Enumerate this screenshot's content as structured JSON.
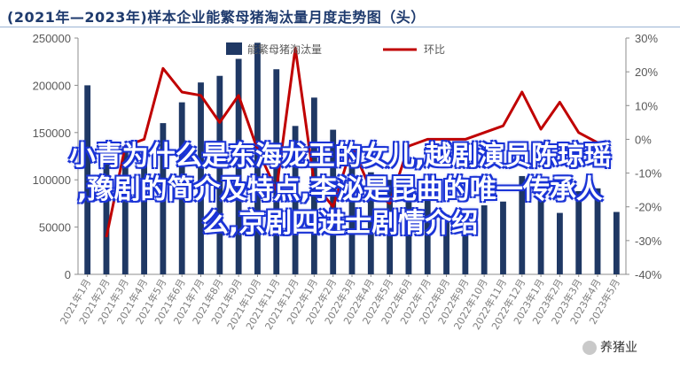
{
  "header": {
    "title": "(2021年—2023年)样本企业能繁母猪淘汰量月度走势图（头）"
  },
  "overlay": {
    "line1": "小青为什么是东海龙王的女儿,越剧演员陈琼瑶",
    "line2": ",豫剧的简介及特点,李泌是昆曲的唯一传承人",
    "line3": "么,京剧四进士剧情介绍"
  },
  "watermark": {
    "text": "养猪业"
  },
  "chart_data": {
    "type": "bar",
    "categories": [
      "2021年1月",
      "2021年2月",
      "2021年3月",
      "2021年4月",
      "2021年5月",
      "2021年6月",
      "2021年7月",
      "2021年8月",
      "2021年9月",
      "2021年10月",
      "2021年11月",
      "2021年12月",
      "2022年1月",
      "2022年2月",
      "2022年3月",
      "2022年4月",
      "2022年5月",
      "2022年6月",
      "2022年7月",
      "2022年8月",
      "2022年9月",
      "2022年10月",
      "2022年11月",
      "2022年12月",
      "2023年1月",
      "2023年2月",
      "2023年3月",
      "2023年4月",
      "2023年5月"
    ],
    "series": [
      {
        "name": "能繁母猪淘汰量",
        "type": "bar",
        "axis": "left",
        "color": "#1f3864",
        "values": [
          200000,
          140000,
          135000,
          135000,
          160000,
          182000,
          203000,
          210000,
          228000,
          245000,
          217000,
          157000,
          187000,
          153000,
          118000,
          108000,
          100000,
          88000,
          87000,
          63000,
          58000,
          73000,
          77000,
          104000,
          98000,
          65000,
          88000,
          91000,
          66000
        ]
      },
      {
        "name": "环比",
        "type": "line",
        "axis": "right",
        "color": "#c00000",
        "values": [
          null,
          -29,
          -2,
          0,
          21,
          14,
          13,
          5,
          13,
          -3,
          -15,
          27,
          -13,
          -20,
          -2,
          -15,
          -19,
          -2,
          0,
          0,
          0,
          2,
          4,
          14,
          3,
          11,
          2,
          -1,
          null
        ]
      }
    ],
    "left_axis": {
      "min": 0,
      "max": 250000,
      "ticks": [
        0,
        50000,
        100000,
        150000,
        200000,
        250000
      ]
    },
    "right_axis": {
      "min": -40,
      "max": 30,
      "ticks": [
        "-40%",
        "-30%",
        "-20%",
        "-10%",
        "0%",
        "10%",
        "20%",
        "30%"
      ]
    },
    "legend_position": "top",
    "grid": false
  }
}
